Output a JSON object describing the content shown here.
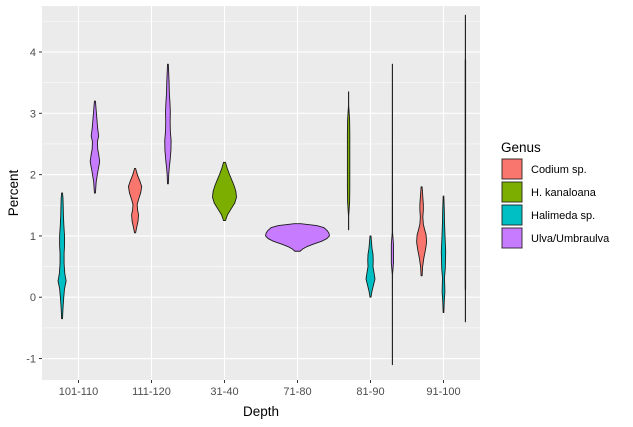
{
  "chart_data": {
    "type": "violin",
    "xlabel": "Depth",
    "ylabel": "Percent",
    "categories": [
      "101-110",
      "111-120",
      "31-40",
      "71-80",
      "81-90",
      "91-100"
    ],
    "ylim": [
      -1.35,
      4.75
    ],
    "yticks": [
      -1,
      0,
      1,
      2,
      3,
      4
    ],
    "grid": true,
    "legend": {
      "title": "Genus",
      "position": "right",
      "entries": [
        {
          "name": "Codium sp.",
          "color": "#F8766D"
        },
        {
          "name": "H. kanaloana",
          "color": "#7CAE00"
        },
        {
          "name": "Halimeda sp.",
          "color": "#00BFC4"
        },
        {
          "name": "Ulva/Umbraulva",
          "color": "#C77CFF"
        }
      ]
    },
    "series": [
      {
        "genus": "Halimeda sp.",
        "category": "101-110",
        "min": -0.35,
        "max": 1.7
      },
      {
        "genus": "Ulva/Umbraulva",
        "category": "101-110",
        "min": 1.7,
        "max": 3.2
      },
      {
        "genus": "Codium sp.",
        "category": "111-120",
        "min": 1.05,
        "max": 2.1
      },
      {
        "genus": "Ulva/Umbraulva",
        "category": "111-120",
        "min": 1.85,
        "max": 3.8
      },
      {
        "genus": "H. kanaloana",
        "category": "31-40",
        "min": 1.25,
        "max": 2.2
      },
      {
        "genus": "Ulva/Umbraulva",
        "category": "71-80",
        "min": 0.75,
        "max": 1.2
      },
      {
        "genus": "H. kanaloana",
        "category": "81-90",
        "min": 1.1,
        "max": 3.35
      },
      {
        "genus": "Halimeda sp.",
        "category": "81-90",
        "min": 0.0,
        "max": 1.0
      },
      {
        "genus": "Ulva/Umbraulva",
        "category": "81-90",
        "min": -1.1,
        "max": 3.8
      },
      {
        "genus": "Codium sp.",
        "category": "91-100",
        "min": 0.35,
        "max": 1.8
      },
      {
        "genus": "Halimeda sp.",
        "category": "91-100",
        "min": -0.25,
        "max": 1.65
      },
      {
        "genus": "Ulva/Umbraulva",
        "category": "91-100",
        "min": -0.4,
        "max": 4.6
      }
    ]
  }
}
